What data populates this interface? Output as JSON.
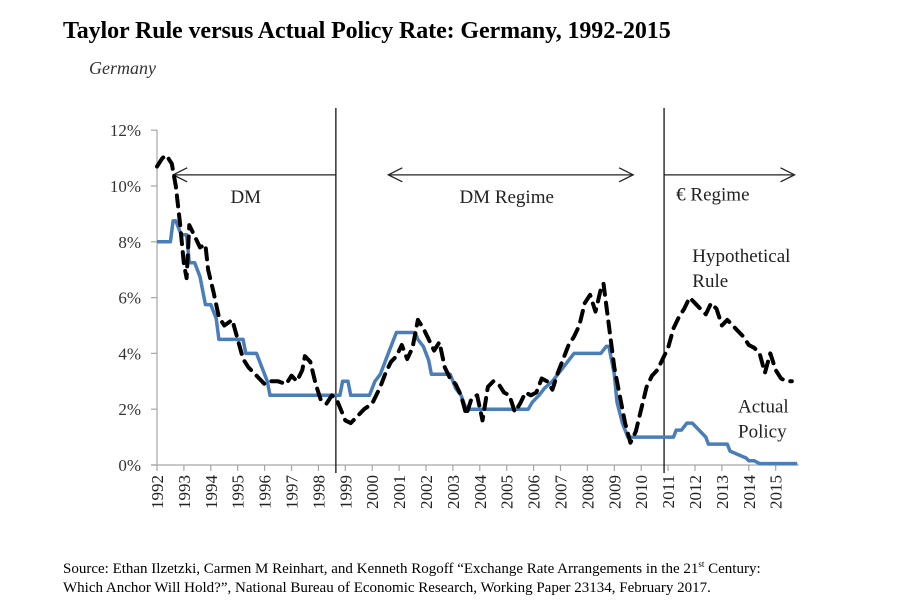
{
  "page": {
    "title": "Taylor Rule versus Actual Policy Rate: Germany, 1992-2015",
    "subtitle": "Germany",
    "source_line1_pre": "Source: Ethan Ilzetzki, Carmen M Reinhart, and Kenneth Rogoff “Exchange Rate Arrangements in the 21",
    "source_line1_sup": "st",
    "source_line1_post": " Century:",
    "source_line2": "Which Anchor Will Hold?”, National Bureau of Economic Research, Working Paper 23134, February 2017."
  },
  "colors": {
    "actual_policy": "#4a7ebb",
    "hypothetical_rule": "#000000",
    "axis": "#a6a6a6",
    "separator": "#000000"
  },
  "chart_data": {
    "type": "line",
    "title": "Taylor Rule versus Actual Policy Rate: Germany, 1992-2015",
    "subtitle": "Germany",
    "xlabel": "",
    "ylabel": "",
    "xlim": [
      1992,
      2015.85
    ],
    "ylim": [
      0,
      12
    ],
    "y_ticks": [
      0,
      2,
      4,
      6,
      8,
      10,
      12
    ],
    "y_tick_labels": [
      "0%",
      "2%",
      "4%",
      "6%",
      "8%",
      "10%",
      "12%"
    ],
    "x_tick_labels": [
      "1992",
      "1993",
      "1994",
      "1995",
      "1996",
      "1997",
      "1998",
      "1999",
      "2000",
      "2001",
      "2002",
      "2003",
      "2004",
      "2005",
      "2006",
      "2007",
      "2008",
      "2009",
      "2010",
      "2011",
      "2012",
      "2013",
      "2014",
      "2015"
    ],
    "grid": false,
    "regime_separators": [
      1998.65,
      2010.85
    ],
    "annotations": [
      {
        "text": "DM",
        "kind": "regime",
        "arrow": "left",
        "x_from": 1992.6,
        "x_to": 1998.65,
        "y": 10.4,
        "label_x": 1995.3,
        "label_y": 9.6
      },
      {
        "text": "DM Regime",
        "kind": "regime",
        "arrow": "both",
        "x_from": 2000.6,
        "x_to": 2009.7,
        "y": 10.4,
        "label_x": 2005.0,
        "label_y": 9.6
      },
      {
        "text": "€ Regime",
        "kind": "regime",
        "arrow": "right",
        "x_from": 2010.85,
        "x_to": 2015.7,
        "y": 10.4,
        "label_x": 2011.3,
        "label_y": 9.7
      },
      {
        "text": "Hypothetical",
        "kind": "series-label",
        "label_x": 2011.9,
        "label_y": 7.5
      },
      {
        "text": "Rule",
        "kind": "series-label",
        "label_x": 2011.9,
        "label_y": 6.6
      },
      {
        "text": "Actual",
        "kind": "series-label",
        "label_x": 2013.6,
        "label_y": 2.1
      },
      {
        "text": "Policy",
        "kind": "series-label",
        "label_x": 2013.6,
        "label_y": 1.2
      }
    ],
    "series": [
      {
        "name": "Actual Policy",
        "style": "solid",
        "x": [
          1992.0,
          1992.5,
          1992.6,
          1992.7,
          1992.9,
          1993.1,
          1993.2,
          1993.4,
          1993.6,
          1993.8,
          1994.0,
          1994.2,
          1994.3,
          1994.5,
          1995.2,
          1995.3,
          1995.7,
          1995.9,
          1996.1,
          1996.2,
          1998.8,
          1998.9,
          1999.1,
          1999.2,
          1999.9,
          2000.1,
          2000.3,
          2000.5,
          2000.7,
          2000.9,
          2001.6,
          2001.7,
          2001.9,
          2002.1,
          2002.2,
          2002.9,
          2003.1,
          2003.3,
          2003.5,
          2003.6,
          2005.8,
          2005.95,
          2006.2,
          2006.4,
          2006.7,
          2006.9,
          2007.1,
          2007.3,
          2007.5,
          2008.5,
          2008.7,
          2008.8,
          2009.0,
          2009.1,
          2009.3,
          2009.5,
          2011.2,
          2011.3,
          2011.5,
          2011.7,
          2011.9,
          2012.4,
          2012.5,
          2013.2,
          2013.3,
          2013.9,
          2014.0,
          2014.2,
          2014.4,
          2014.7,
          2015.8
        ],
        "y": [
          8.0,
          8.0,
          8.75,
          8.75,
          8.25,
          8.25,
          7.25,
          7.25,
          6.75,
          5.75,
          5.75,
          5.25,
          4.5,
          4.5,
          4.5,
          4.0,
          4.0,
          3.5,
          3.0,
          2.5,
          2.5,
          3.0,
          3.0,
          2.5,
          2.5,
          3.0,
          3.25,
          3.75,
          4.25,
          4.75,
          4.75,
          4.5,
          4.25,
          3.75,
          3.25,
          3.25,
          2.75,
          2.5,
          2.0,
          2.0,
          2.0,
          2.25,
          2.5,
          2.75,
          3.0,
          3.25,
          3.5,
          3.75,
          4.0,
          4.0,
          4.25,
          4.25,
          3.25,
          2.25,
          1.5,
          1.0,
          1.0,
          1.25,
          1.25,
          1.5,
          1.5,
          1.0,
          0.75,
          0.75,
          0.5,
          0.25,
          0.15,
          0.15,
          0.05,
          0.05,
          0.05
        ]
      },
      {
        "name": "Hypothetical Rule",
        "style": "dashed",
        "x": [
          1992.0,
          1992.2,
          1992.35,
          1992.55,
          1992.7,
          1992.85,
          1993.0,
          1993.1,
          1993.2,
          1993.4,
          1993.6,
          1993.8,
          1993.9,
          1994.1,
          1994.3,
          1994.5,
          1994.8,
          1995.0,
          1995.2,
          1995.4,
          1995.6,
          1995.8,
          1996.0,
          1996.2,
          1996.5,
          1996.8,
          1997.0,
          1997.2,
          1997.4,
          1997.5,
          1997.7,
          1997.9,
          1998.1,
          1998.3,
          1998.5,
          1998.7,
          1999.0,
          1999.2,
          1999.4,
          1999.7,
          2000.0,
          2000.3,
          2000.5,
          2000.7,
          2000.9,
          2001.1,
          2001.3,
          2001.5,
          2001.7,
          2001.9,
          2002.1,
          2002.3,
          2002.5,
          2002.7,
          2002.9,
          2003.1,
          2003.3,
          2003.5,
          2003.7,
          2003.9,
          2004.1,
          2004.3,
          2004.5,
          2004.7,
          2004.9,
          2005.1,
          2005.3,
          2005.5,
          2005.7,
          2005.9,
          2006.1,
          2006.3,
          2006.5,
          2006.7,
          2006.9,
          2007.1,
          2007.3,
          2007.5,
          2007.7,
          2007.9,
          2008.1,
          2008.3,
          2008.5,
          2008.6,
          2008.8,
          2009.0,
          2009.2,
          2009.4,
          2009.6,
          2009.8,
          2010.0,
          2010.2,
          2010.4,
          2010.6,
          2010.8,
          2011.0,
          2011.2,
          2011.4,
          2011.6,
          2011.8,
          2012.0,
          2012.2,
          2012.4,
          2012.6,
          2012.8,
          2013.0,
          2013.2,
          2013.4,
          2013.6,
          2013.8,
          2014.0,
          2014.2,
          2014.4,
          2014.6,
          2014.8,
          2015.0,
          2015.2,
          2015.4,
          2015.6
        ],
        "y": [
          10.7,
          11.0,
          11.1,
          10.8,
          10.0,
          8.7,
          7.2,
          6.7,
          8.6,
          8.2,
          7.8,
          7.9,
          7.0,
          6.2,
          5.3,
          5.0,
          5.2,
          4.5,
          3.8,
          3.5,
          3.3,
          3.1,
          2.9,
          3.0,
          3.0,
          2.9,
          3.2,
          3.0,
          3.4,
          3.9,
          3.7,
          2.9,
          2.3,
          2.2,
          2.5,
          2.3,
          1.6,
          1.5,
          1.7,
          2.0,
          2.2,
          2.8,
          3.3,
          3.7,
          3.9,
          4.3,
          3.8,
          4.2,
          5.2,
          4.9,
          4.5,
          4.1,
          4.4,
          3.5,
          3.1,
          2.9,
          2.5,
          1.8,
          2.4,
          2.5,
          1.6,
          2.8,
          3.0,
          2.9,
          2.6,
          2.5,
          1.9,
          2.2,
          2.6,
          2.5,
          2.6,
          3.1,
          3.0,
          2.7,
          3.3,
          3.8,
          4.3,
          4.6,
          5.0,
          5.8,
          6.1,
          5.5,
          6.3,
          6.5,
          5.0,
          3.5,
          2.5,
          1.5,
          0.8,
          1.2,
          2.0,
          2.8,
          3.2,
          3.4,
          3.8,
          4.2,
          4.9,
          5.3,
          5.6,
          6.0,
          5.8,
          5.6,
          5.4,
          5.8,
          5.6,
          5.0,
          5.2,
          5.0,
          4.8,
          4.6,
          4.3,
          4.2,
          4.0,
          3.3,
          4.0,
          3.4,
          3.1,
          3.0,
          3.0
        ]
      }
    ]
  }
}
